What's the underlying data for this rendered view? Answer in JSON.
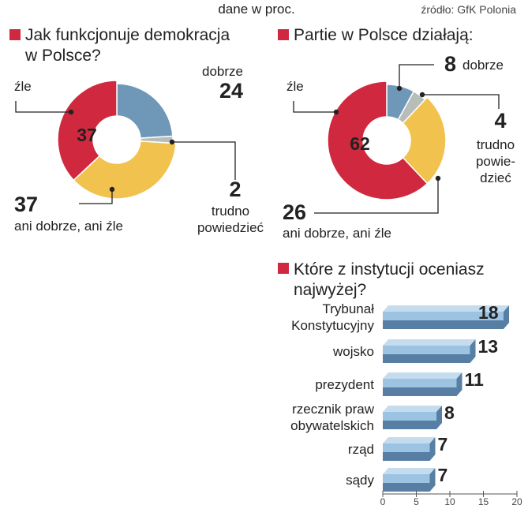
{
  "header": {
    "subtitle": "dane w proc.",
    "source": "źródło: GfK Polonia"
  },
  "colors": {
    "marker": "#d0283f",
    "red": "#d0283f",
    "blue": "#6f97b8",
    "yellow": "#f2c24f",
    "gray": "#b7bdb8",
    "bar_top": "#c5dcee",
    "bar_front": "#9cc3e2",
    "bar_side": "#567fa3"
  },
  "chart_data": [
    {
      "type": "pie",
      "title": "Jak funkcjonuje demokracja w Polsce?",
      "title_lines": [
        "Jak funkcjonuje demokracja",
        "w Polsce?"
      ],
      "slices": [
        {
          "key": "dobrze",
          "value": 24,
          "label_lines": [
            "dobrze"
          ],
          "value_text": "24",
          "color": "#6f97b8"
        },
        {
          "key": "trudno",
          "value": 2,
          "label_lines": [
            "trudno",
            "powiedzieć"
          ],
          "value_text": "2",
          "color": "#b7bdb8"
        },
        {
          "key": "ani",
          "value": 37,
          "label_lines": [
            "ani dobrze, ani źle"
          ],
          "value_text": "37",
          "color": "#f2c24f"
        },
        {
          "key": "zle",
          "value": 37,
          "label_lines": [
            "źle"
          ],
          "value_text": "37",
          "color": "#d0283f"
        }
      ]
    },
    {
      "type": "pie",
      "title": "Partie w Polsce działają:",
      "title_lines": [
        "Partie w Polsce działają:"
      ],
      "slices": [
        {
          "key": "dobrze",
          "value": 8,
          "label_lines": [
            "dobrze"
          ],
          "value_text": "8",
          "color": "#6f97b8"
        },
        {
          "key": "trudno",
          "value": 4,
          "label_lines": [
            "trudno",
            "powie-",
            "dzieć"
          ],
          "value_text": "4",
          "color": "#b7bdb8"
        },
        {
          "key": "ani",
          "value": 26,
          "label_lines": [
            "ani dobrze, ani źle"
          ],
          "value_text": "26",
          "color": "#f2c24f"
        },
        {
          "key": "zle",
          "value": 62,
          "label_lines": [
            "źle"
          ],
          "value_text": "62",
          "color": "#d0283f"
        }
      ]
    },
    {
      "type": "bar",
      "orientation": "horizontal",
      "title": "Które z instytucji oceniasz najwyżej?",
      "title_lines": [
        "Które z instytucji oceniasz",
        "najwyżej?"
      ],
      "categories": [
        {
          "label_lines": [
            "Trybunał",
            "Konstytucyjny"
          ],
          "value": 18
        },
        {
          "label_lines": [
            "wojsko"
          ],
          "value": 13
        },
        {
          "label_lines": [
            "prezydent"
          ],
          "value": 11
        },
        {
          "label_lines": [
            "rzecznik praw",
            "obywatelskich"
          ],
          "value": 8
        },
        {
          "label_lines": [
            "rząd"
          ],
          "value": 7
        },
        {
          "label_lines": [
            "sądy"
          ],
          "value": 7
        }
      ],
      "xlim": [
        0,
        20
      ],
      "xticks": [
        "0",
        "5",
        "10",
        "15",
        "20"
      ]
    }
  ]
}
